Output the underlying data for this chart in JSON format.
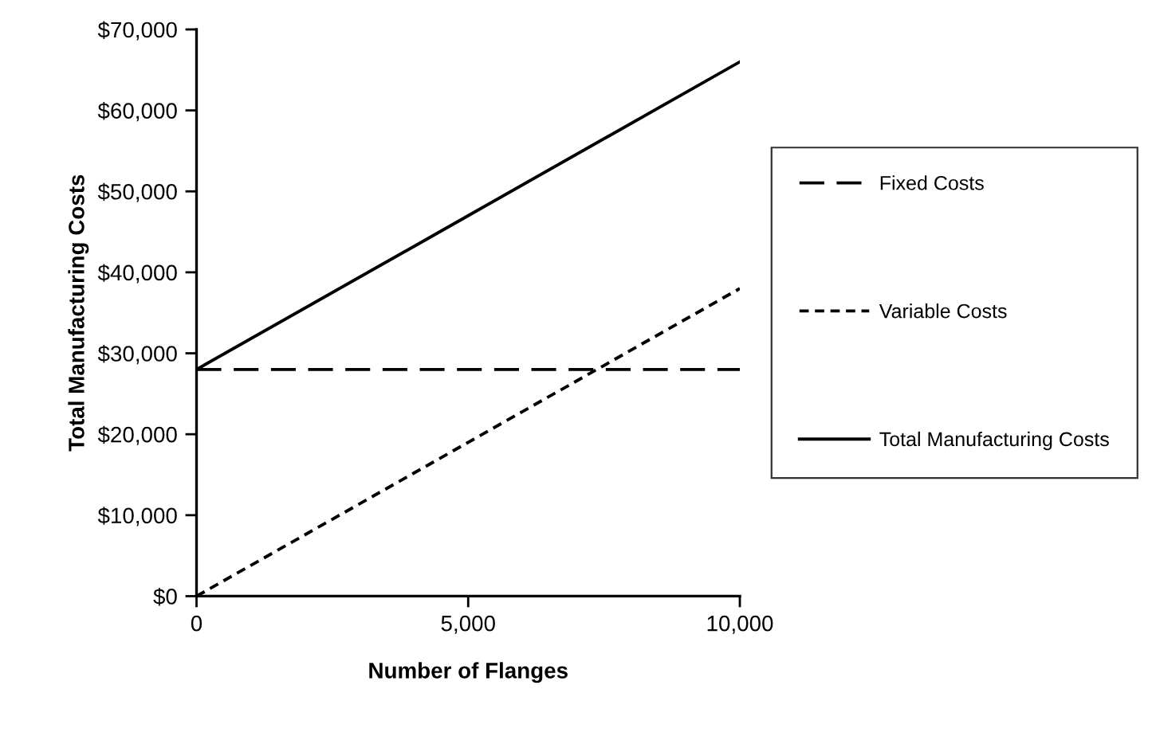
{
  "chart_data": {
    "type": "line",
    "xlabel": "Number of Flanges",
    "ylabel": "Total Manufacturing Costs",
    "categories": [
      "0",
      "5,000",
      "10,000"
    ],
    "series": [
      {
        "name": "Fixed Costs",
        "color": "#000000",
        "line_style": "dashed",
        "values": [
          28000,
          28000,
          28000
        ]
      },
      {
        "name": "Variable Costs",
        "color": "#000000",
        "line_style": "dotted",
        "values": [
          0,
          19000,
          38000
        ]
      },
      {
        "name": "Total Manufacturing Costs",
        "color": "#000000",
        "line_style": "solid",
        "values": [
          28000,
          47000,
          66000
        ]
      }
    ],
    "ylim": [
      0,
      70000
    ],
    "yticks": [
      {
        "value": 0,
        "label": "$0"
      },
      {
        "value": 10000,
        "label": "$10,000"
      },
      {
        "value": 20000,
        "label": "$20,000"
      },
      {
        "value": 30000,
        "label": "$30,000"
      },
      {
        "value": 40000,
        "label": "$40,000"
      },
      {
        "value": 50000,
        "label": "$50,000"
      },
      {
        "value": 60000,
        "label": "$60,000"
      },
      {
        "value": 70000,
        "label": "$70,000"
      }
    ],
    "grid": false,
    "legend": "right",
    "marker": "none"
  }
}
